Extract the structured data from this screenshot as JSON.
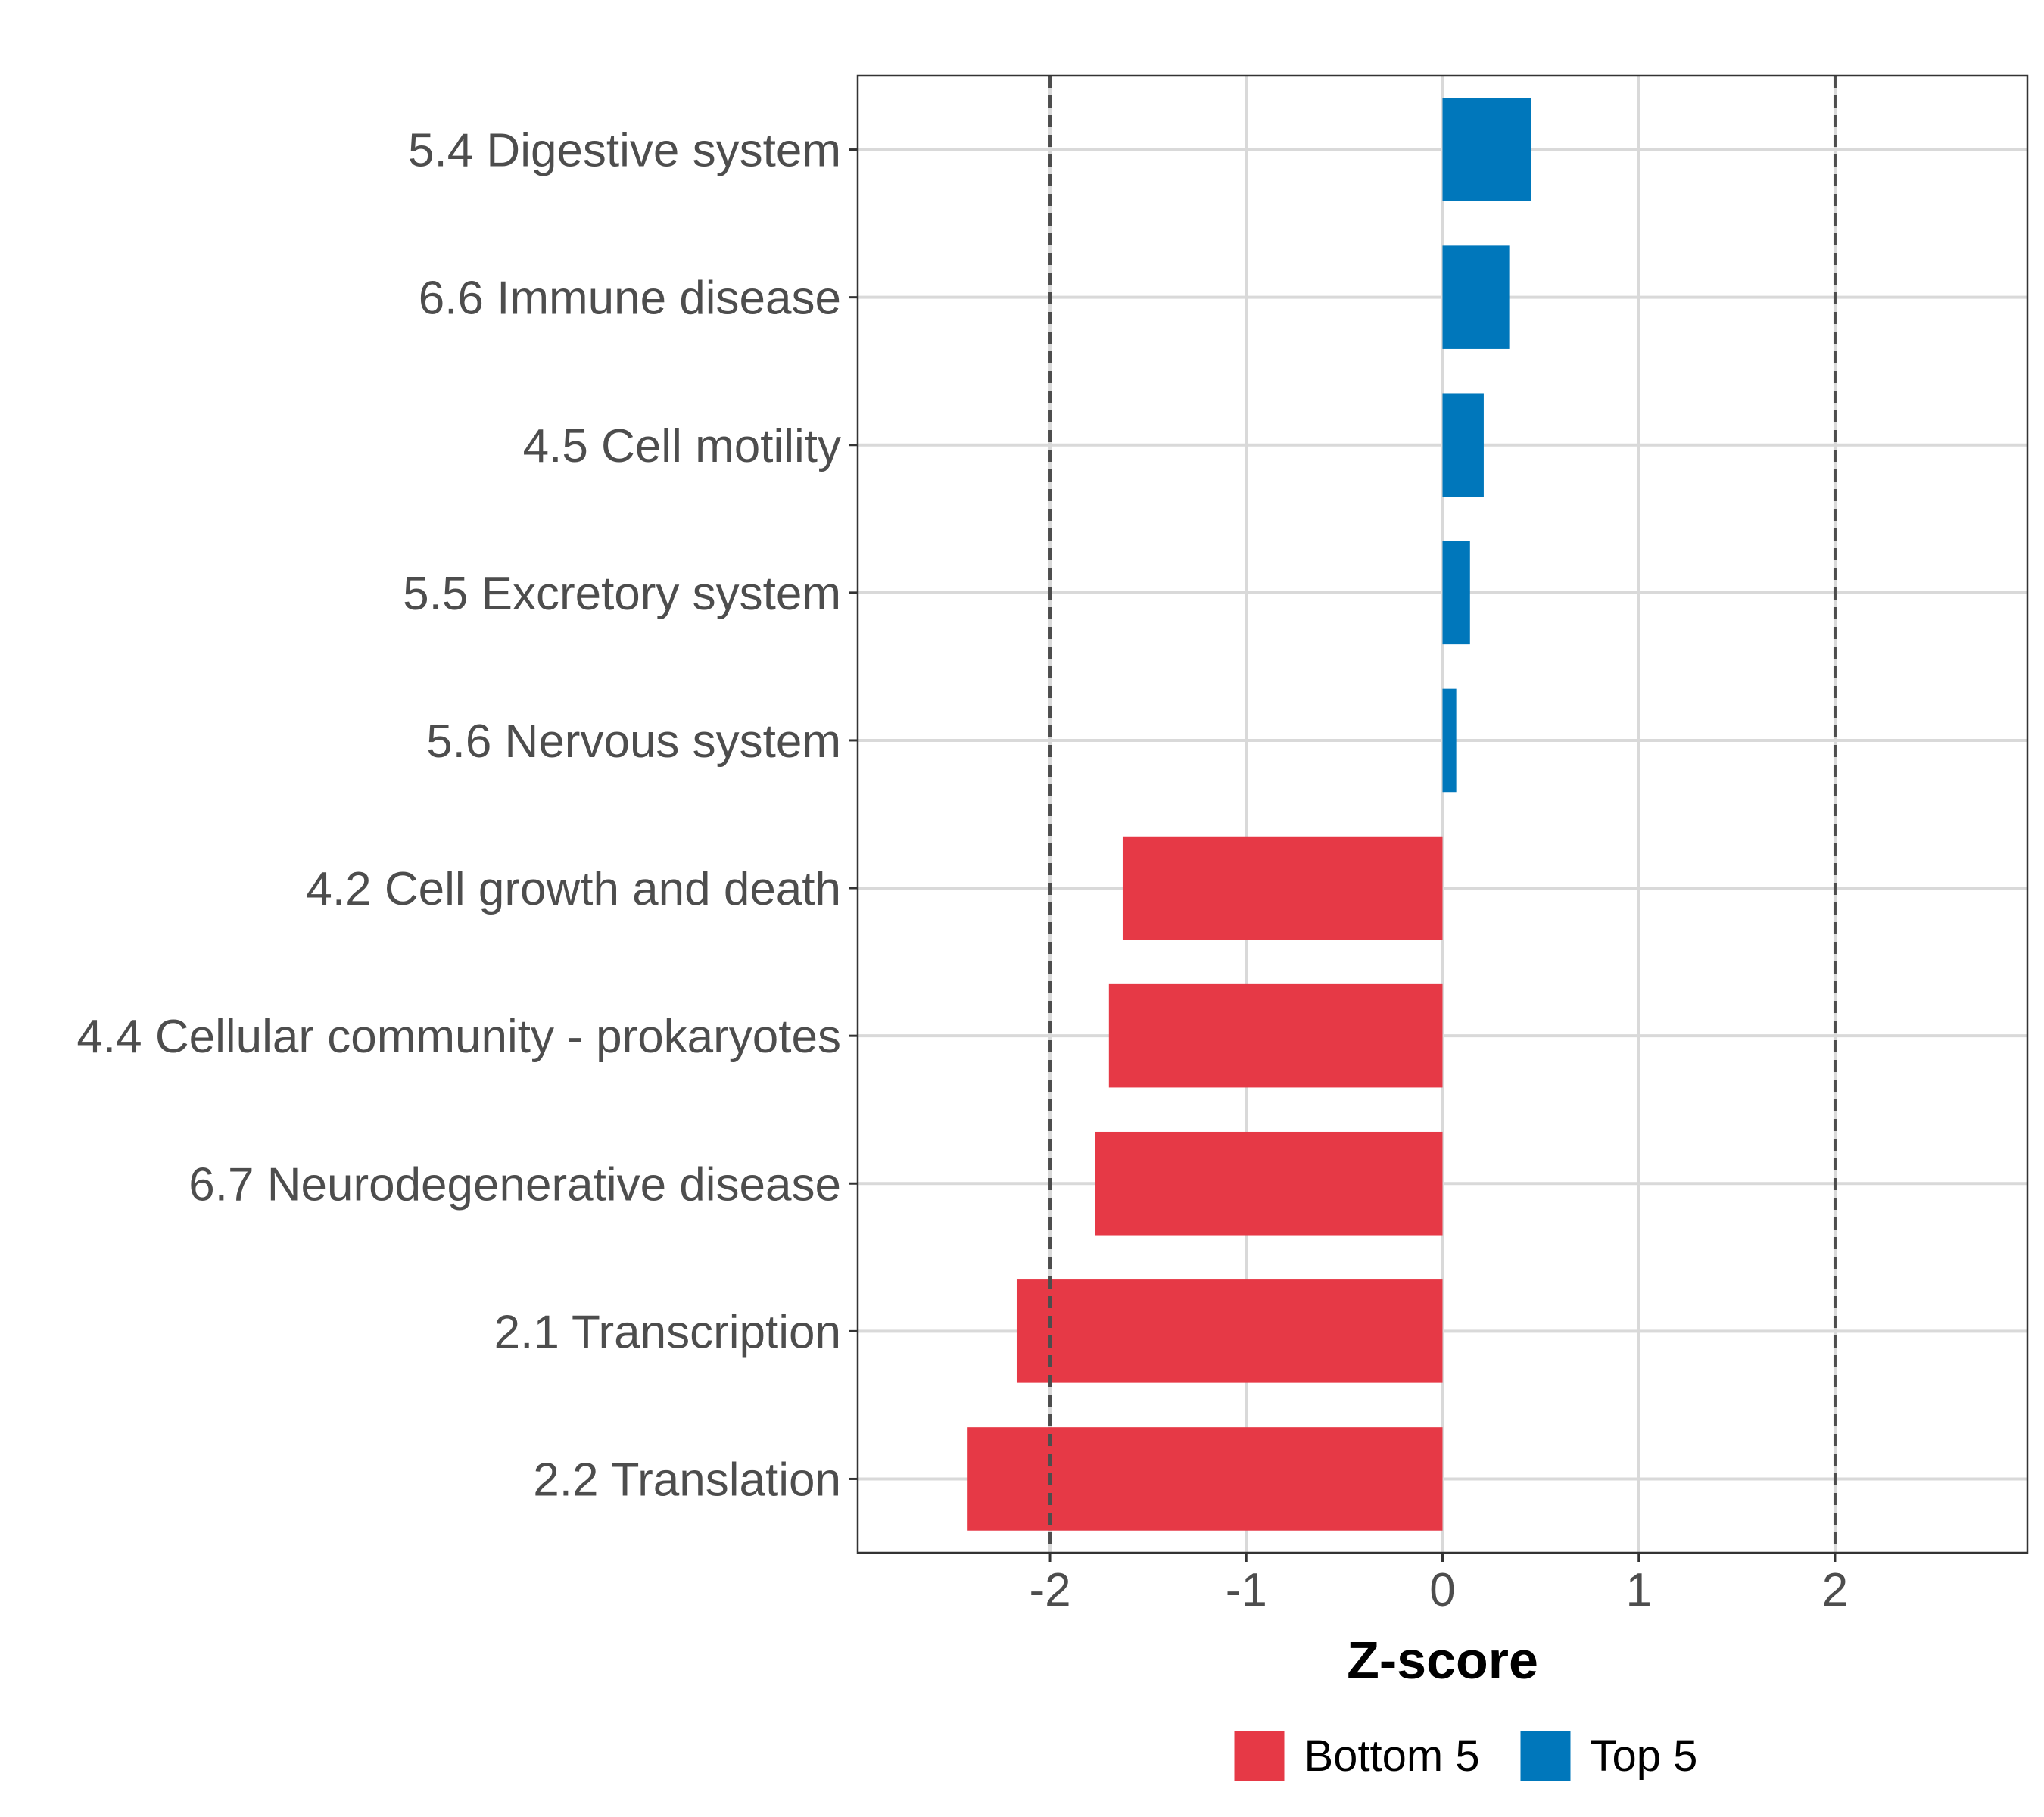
{
  "chart_data": {
    "type": "bar",
    "orientation": "horizontal",
    "categories": [
      "5.4 Digestive system",
      "6.6 Immune disease",
      "4.5 Cell motility",
      "5.5 Excretory system",
      "5.6 Nervous system",
      "4.2 Cell growth and death",
      "4.4 Cellular community - prokaryotes",
      "6.7 Neurodegenerative disease",
      "2.1 Transcription",
      "2.2 Translation"
    ],
    "values": [
      0.45,
      0.34,
      0.21,
      0.14,
      0.07,
      -1.63,
      -1.7,
      -1.77,
      -2.17,
      -2.42
    ],
    "groups": [
      "Top 5",
      "Top 5",
      "Top 5",
      "Top 5",
      "Top 5",
      "Bottom 5",
      "Bottom 5",
      "Bottom 5",
      "Bottom 5",
      "Bottom 5"
    ],
    "xlabel": "Z-score",
    "ylabel": "",
    "xlim": [
      -2.98,
      2.98
    ],
    "xticks": [
      -2,
      -1,
      0,
      1,
      2
    ],
    "xtick_labels": [
      "-2",
      "-1",
      "0",
      "1",
      "2"
    ],
    "reference_lines": [
      -2,
      2
    ],
    "grid": true,
    "legend": {
      "position": "bottom",
      "entries": [
        {
          "label": "Bottom 5",
          "color": "#E63946"
        },
        {
          "label": "Top 5",
          "color": "#0077BB"
        }
      ]
    }
  }
}
